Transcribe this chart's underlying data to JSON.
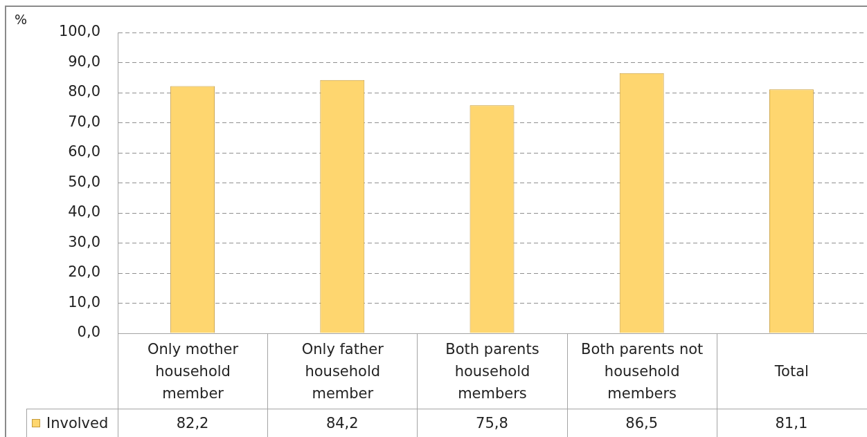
{
  "chart_data": {
    "type": "bar",
    "ylabel": "%",
    "categories": [
      "Only mother household member",
      "Only father household member",
      "Both parents household members",
      "Both parents not household members",
      "Total"
    ],
    "series": [
      {
        "name": "Involved",
        "color": "#fed66f",
        "values": [
          82.2,
          84.2,
          75.8,
          86.5,
          81.1
        ],
        "value_labels": [
          "82,2",
          "84,2",
          "75,8",
          "86,5",
          "81,1"
        ]
      }
    ],
    "ylim": [
      0,
      100
    ],
    "yticks": [
      {
        "value": 0,
        "label": "0,0"
      },
      {
        "value": 10,
        "label": "10,0"
      },
      {
        "value": 20,
        "label": "20,0"
      },
      {
        "value": 30,
        "label": "30,0"
      },
      {
        "value": 40,
        "label": "40,0"
      },
      {
        "value": 50,
        "label": "50,0"
      },
      {
        "value": 60,
        "label": "60,0"
      },
      {
        "value": 70,
        "label": "70,0"
      },
      {
        "value": 80,
        "label": "80,0"
      },
      {
        "value": 90,
        "label": "90,0"
      },
      {
        "value": 100,
        "label": "100,0"
      }
    ],
    "grid": "y",
    "legend": "bottom"
  }
}
